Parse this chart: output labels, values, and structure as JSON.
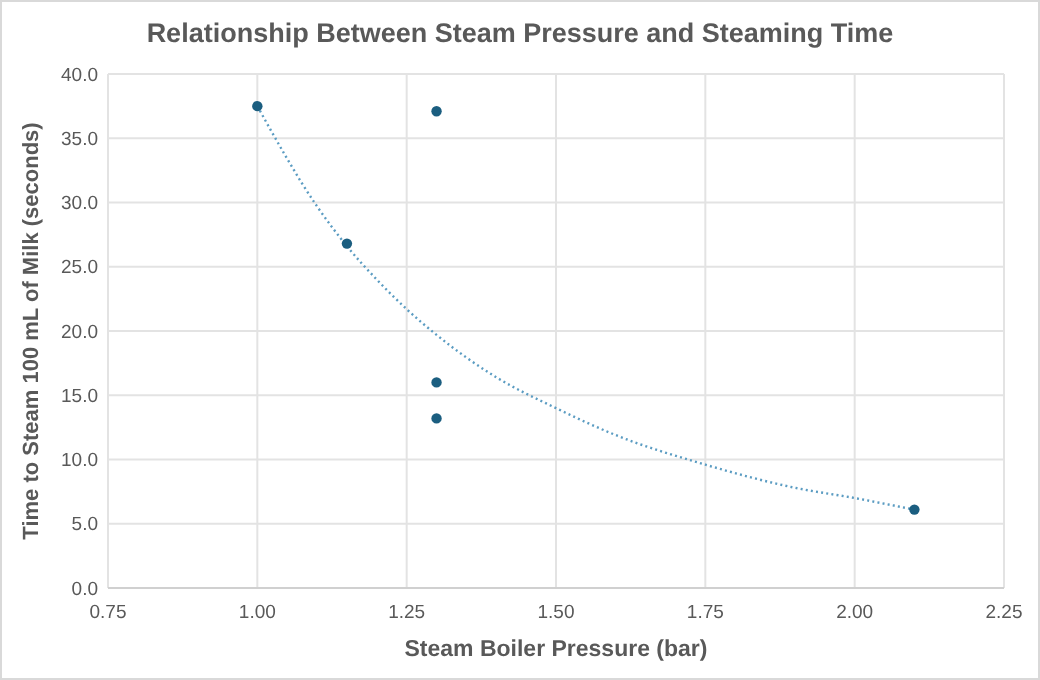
{
  "chart_data": {
    "type": "scatter",
    "title": "Relationship Between Steam Pressure and Steaming Time",
    "xlabel": "Steam Boiler Pressure (bar)",
    "ylabel": "Time to Steam 100 mL of Milk (seconds)",
    "xlim": [
      0.75,
      2.25
    ],
    "xticks": [
      {
        "value": 0.75,
        "label": "0.75"
      },
      {
        "value": 1,
        "label": "1.00"
      },
      {
        "value": 1.25,
        "label": "1.25"
      },
      {
        "value": 1.5,
        "label": "1.50"
      },
      {
        "value": 1.75,
        "label": "1.75"
      },
      {
        "value": 2,
        "label": "2.00"
      },
      {
        "value": 2.25,
        "label": "2.25"
      }
    ],
    "ylim": [
      0,
      40
    ],
    "yticks": [
      {
        "value": 0,
        "label": "0.0"
      },
      {
        "value": 5,
        "label": "5.0"
      },
      {
        "value": 10,
        "label": "10.0"
      },
      {
        "value": 15,
        "label": "15.0"
      },
      {
        "value": 20,
        "label": "20.0"
      },
      {
        "value": 25,
        "label": "25.0"
      },
      {
        "value": 30,
        "label": "30.0"
      },
      {
        "value": 35,
        "label": "35.0"
      },
      {
        "value": 40,
        "label": "40.0"
      }
    ],
    "grid": true,
    "series": [
      {
        "color": "#1b5e80",
        "marker": "circle",
        "x": [
          1.0,
          1.15,
          1.3,
          1.3,
          1.3,
          2.1
        ],
        "values": [
          37.5,
          26.8,
          37.1,
          16.0,
          13.2,
          6.1
        ]
      },
      {
        "type": "line",
        "color": "#5b9cc2",
        "line_style": "dotted",
        "marker": "none",
        "x": [
          1.0,
          1.1,
          1.15,
          1.2,
          1.25,
          1.3,
          1.4,
          1.5,
          1.6,
          1.75,
          1.9,
          2.0,
          2.1
        ],
        "values": [
          37.5,
          29.7,
          26.6,
          24.0,
          21.7,
          19.7,
          16.4,
          14.0,
          11.9,
          9.6,
          7.8,
          7.0,
          6.1
        ]
      }
    ]
  }
}
